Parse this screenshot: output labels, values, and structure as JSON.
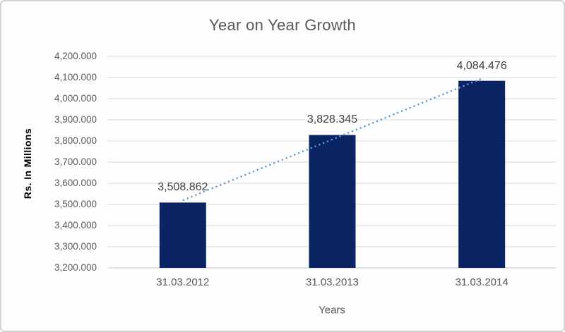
{
  "chart_data": {
    "type": "bar",
    "title": "Year on Year Growth",
    "xlabel": "Years",
    "ylabel": "Rs. In Millions",
    "categories": [
      "31.03.2012",
      "31.03.2013",
      "31.03.2014"
    ],
    "values": [
      3508.862,
      3828.345,
      4084.476
    ],
    "value_labels": [
      "3,508.862",
      "3,828.345",
      "4,084.476"
    ],
    "ylim": [
      3200,
      4200
    ],
    "ytick_step": 100,
    "ytick_labels": [
      "4,200.000",
      "4,100.000",
      "4,000.000",
      "3,900.000",
      "3,800.000",
      "3,700.000",
      "3,600.000",
      "3,500.000",
      "3,400.000",
      "3,300.000",
      "3,200.000"
    ],
    "grid": true,
    "legend": false,
    "trendline": {
      "type": "linear",
      "style": "dotted"
    },
    "colors": {
      "bar": "#0a2463",
      "trendline": "#5b9bd5",
      "gridline": "#d9d9d9",
      "axis_line": "#c6c6c6",
      "title_text": "#595959",
      "tick_text": "#595959",
      "data_label_text": "#404040",
      "y_axis_title_text": "#000000"
    }
  }
}
